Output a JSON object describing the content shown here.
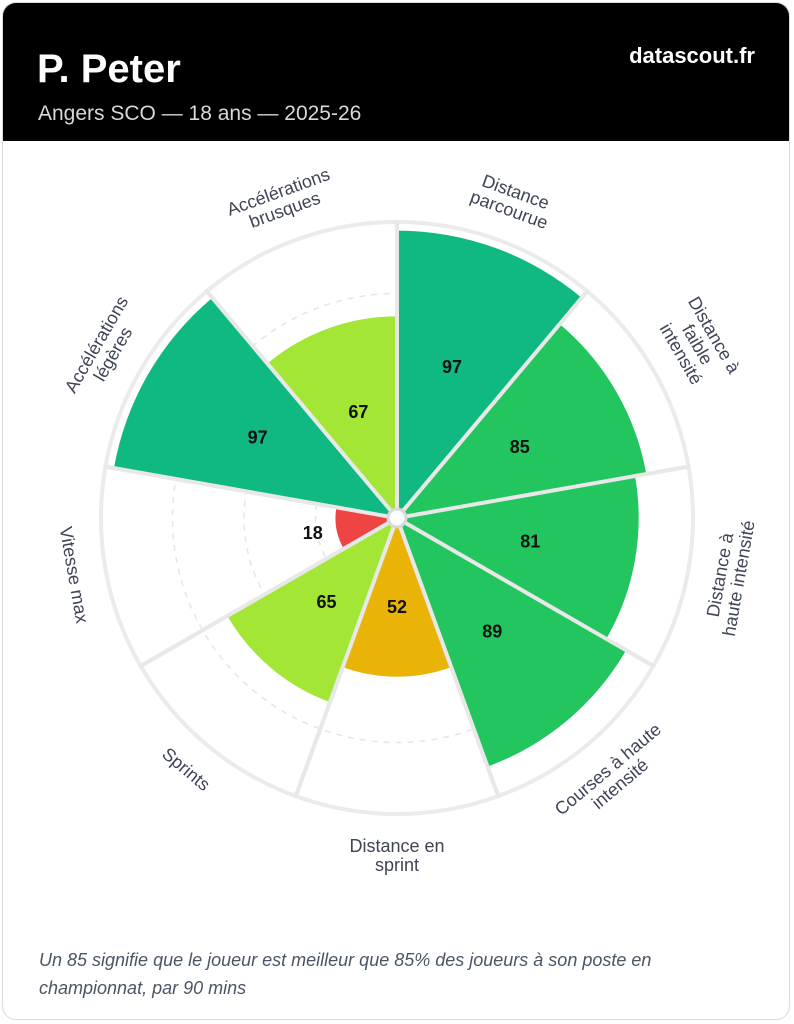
{
  "header": {
    "player_name": "P. Peter",
    "subtitle": "Angers SCO — 18 ans — 2025-26",
    "brand": "datascout.fr"
  },
  "chart_data": {
    "type": "polar-bar",
    "max": 100,
    "categories": [
      {
        "label": [
          "Distance",
          "parcourue"
        ],
        "value": 97,
        "color": "#10b981"
      },
      {
        "label": [
          "Distance à",
          "faible",
          "intensité"
        ],
        "value": 85,
        "color": "#22c55e"
      },
      {
        "label": [
          "Distance à",
          "haute intensité"
        ],
        "value": 81,
        "color": "#22c55e"
      },
      {
        "label": [
          "Courses à haute",
          "intensité"
        ],
        "value": 89,
        "color": "#22c55e"
      },
      {
        "label": [
          "Distance en",
          "sprint"
        ],
        "value": 52,
        "color": "#eab308"
      },
      {
        "label": [
          "Sprints"
        ],
        "value": 65,
        "color": "#a3e635"
      },
      {
        "label": [
          "Vitesse max"
        ],
        "value": 18,
        "color": "#ef4444"
      },
      {
        "label": [
          "Accélérations",
          "légères"
        ],
        "value": 97,
        "color": "#10b981"
      },
      {
        "label": [
          "Accélérations",
          "brusques"
        ],
        "value": 67,
        "color": "#a3e635"
      }
    ]
  },
  "footnote": "Un 85 signifie que le joueur est meilleur que 85% des joueurs à son poste en championnat, par 90 mins"
}
